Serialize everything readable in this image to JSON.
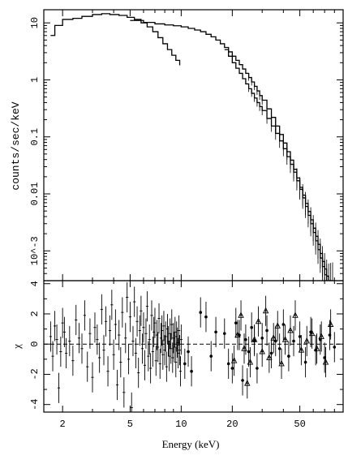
{
  "chart_data": [
    {
      "type": "line",
      "panel": "spectrum",
      "title": "",
      "xlabel": "Energy (keV)",
      "ylabel": "counts/sec/keV",
      "xscale": "log",
      "yscale": "log",
      "xlim": [
        1.55,
        90
      ],
      "ylim": [
        0.0003,
        17
      ],
      "y_tick_labels": [
        "10",
        "1",
        "0.1",
        "0.01",
        "10^-3"
      ],
      "y_tick_values": [
        10,
        1,
        0.1,
        0.01,
        0.001
      ],
      "series": [
        {
          "x": [
            1.7,
            1.8,
            2.0,
            2.3,
            2.6,
            3.0,
            3.4,
            3.8,
            4.3,
            4.8,
            5.3,
            5.8,
            6.3,
            6.8,
            7.3,
            7.8,
            8.3,
            8.8,
            9.3,
            9.8
          ],
          "y": [
            6,
            9,
            11.5,
            12,
            13,
            14,
            14.5,
            14,
            13.5,
            12.5,
            11.5,
            10,
            8.5,
            7,
            5.5,
            4.3,
            3.4,
            2.7,
            2.2,
            1.8
          ]
        },
        {
          "x": [
            5.0,
            6.0,
            7.0,
            8.0,
            9.0,
            10,
            11,
            12,
            13,
            14,
            15,
            16,
            17,
            18,
            19,
            20,
            21,
            22,
            23,
            24,
            25,
            26,
            27,
            28,
            29,
            30,
            32,
            34,
            36,
            38,
            40,
            42,
            44,
            46,
            48,
            50,
            52,
            54,
            56,
            58,
            60,
            62,
            64,
            66,
            68,
            70,
            72,
            74,
            76,
            78
          ],
          "y": [
            11,
            10.2,
            9.6,
            9.2,
            8.9,
            8.5,
            8.0,
            7.5,
            7.0,
            6.3,
            5.7,
            5.0,
            4.3,
            3.7,
            3.1,
            2.6,
            2.2,
            1.85,
            1.55,
            1.3,
            1.1,
            0.92,
            0.77,
            0.64,
            0.53,
            0.44,
            0.31,
            0.22,
            0.155,
            0.11,
            0.078,
            0.055,
            0.039,
            0.027,
            0.019,
            0.013,
            0.0095,
            0.0068,
            0.0049,
            0.0035,
            0.0025,
            0.0018,
            0.0013,
            0.0009,
            0.00065,
            0.00048,
            0.00036,
            0.0003,
            0.0003,
            0.0003
          ]
        },
        {
          "x": [
            18,
            19,
            20,
            21,
            22,
            23,
            24,
            25,
            26,
            27,
            28,
            29,
            30,
            32,
            34,
            36,
            38,
            40,
            42,
            44,
            46,
            48,
            50,
            52,
            54,
            56,
            58,
            60,
            62,
            64,
            66,
            68,
            70,
            72
          ],
          "y": [
            3.4,
            2.6,
            2.0,
            1.6,
            1.3,
            1.05,
            0.85,
            0.7,
            0.58,
            0.48,
            0.4,
            0.34,
            0.29,
            0.21,
            0.155,
            0.115,
            0.085,
            0.062,
            0.045,
            0.033,
            0.024,
            0.017,
            0.012,
            0.0085,
            0.006,
            0.0042,
            0.003,
            0.0021,
            0.0015,
            0.00105,
            0.00075,
            0.00053,
            0.00038,
            0.0003
          ]
        }
      ]
    },
    {
      "type": "scatter",
      "panel": "residuals",
      "title": "",
      "xlabel": "Energy (keV)",
      "ylabel": "χ",
      "xscale": "log",
      "xlim": [
        1.55,
        90
      ],
      "ylim": [
        -4.5,
        4.2
      ],
      "x_tick_labels": [
        "2",
        "5",
        "10",
        "20",
        "50"
      ],
      "x_tick_values": [
        2,
        5,
        10,
        20,
        50
      ],
      "y_tick_labels": [
        "4",
        "2",
        "0",
        "-2",
        "-4"
      ],
      "y_tick_values": [
        4,
        2,
        0,
        -2,
        -4
      ],
      "reference_line": 0,
      "series": [
        {
          "marker": "none",
          "x": [
            1.7,
            1.75,
            1.8,
            1.85,
            1.9,
            1.95,
            2.0,
            2.05,
            2.1,
            2.2,
            2.3,
            2.4,
            2.5,
            2.6,
            2.7,
            2.8,
            2.9,
            3.0,
            3.1,
            3.2,
            3.3,
            3.4,
            3.5,
            3.6,
            3.7,
            3.8,
            3.9,
            4.0,
            4.1,
            4.2,
            4.3,
            4.4,
            4.5,
            4.6,
            4.7,
            4.8,
            4.9,
            5.0,
            5.1,
            5.2,
            5.3,
            5.4,
            5.5,
            5.6,
            5.7,
            5.8,
            5.9,
            6.0,
            6.1,
            6.2,
            6.3,
            6.4,
            6.5,
            6.6,
            6.7,
            6.8,
            6.9,
            7.0,
            7.1,
            7.2,
            7.3,
            7.4,
            7.5,
            7.6,
            7.7,
            7.8,
            7.9,
            8.0,
            8.1,
            8.2,
            8.3,
            8.4,
            8.5,
            8.6,
            8.7,
            8.8,
            8.9,
            9.0,
            9.1,
            9.2,
            9.3,
            9.4,
            9.5,
            9.6,
            9.7,
            9.8,
            9.9,
            10.0
          ],
          "y": [
            0.5,
            -0.8,
            1.2,
            0.3,
            -2.9,
            -0.5,
            1.4,
            0.8,
            -0.6,
            0.2,
            -1.1,
            1.6,
            0.4,
            -0.3,
            1.9,
            -1.5,
            0.7,
            -2.2,
            1.1,
            0.3,
            -0.9,
            2.3,
            -0.4,
            1.5,
            -1.8,
            0.9,
            2.6,
            -0.7,
            1.3,
            -2.7,
            0.6,
            -1.2,
            2.1,
            -3.2,
            0.4,
            3.1,
            -1.0,
            1.8,
            -4.2,
            0.2,
            2.8,
            -0.6,
            1.5,
            -1.9,
            0.9,
            2.2,
            -0.3,
            1.1,
            -1.4,
            0.7,
            2.5,
            -0.8,
            0.3,
            -1.6,
            1.9,
            -0.5,
            0.8,
            1.4,
            -1.1,
            0.6,
            -0.2,
            1.7,
            -1.3,
            0.4,
            0.9,
            -0.7,
            1.2,
            -0.4,
            0.5,
            -1.5,
            1.0,
            0.2,
            -0.8,
            0.7,
            -0.3,
            1.3,
            -0.9,
            0.4,
            -0.2,
            0.8,
            -1.2,
            0.5,
            0.1,
            -0.6,
            0.9,
            -0.4,
            -1.8,
            0.3
          ],
          "yerr": 1
        },
        {
          "marker": "cross",
          "x": [
            10.5,
            11,
            11.5,
            13,
            14,
            15,
            16,
            18,
            19,
            20,
            21,
            22,
            23,
            24,
            25,
            26,
            27,
            28,
            30,
            32,
            34,
            36,
            38,
            40,
            43,
            46,
            50,
            54,
            58,
            62,
            66,
            70,
            75,
            80
          ],
          "y": [
            -1.3,
            -0.5,
            -1.8,
            2.1,
            1.8,
            -0.8,
            0.8,
            0.7,
            -1.3,
            -1.6,
            1.4,
            0.6,
            -2.4,
            0.3,
            -0.5,
            1.1,
            0.2,
            -1.6,
            0.4,
            0.9,
            -0.6,
            0.2,
            -0.3,
            1.3,
            -0.8,
            0.2,
            0.5,
            -1.2,
            0.8,
            -0.4,
            0.3,
            -0.9,
            0.6,
            -0.2
          ],
          "yerr": 1
        },
        {
          "marker": "triangle",
          "x": [
            20.5,
            21.5,
            22.5,
            23.5,
            24.5,
            25.5,
            27,
            28.5,
            30,
            31.5,
            33,
            35,
            37,
            39,
            41,
            44,
            47,
            51,
            55,
            59,
            63,
            67,
            71,
            76
          ],
          "y": [
            -1.1,
            0.6,
            1.9,
            -0.3,
            -2.6,
            -1.2,
            0.3,
            1.5,
            -0.5,
            2.2,
            -0.9,
            0.4,
            1.2,
            -1.3,
            0.3,
            0.9,
            1.9,
            -0.4,
            0.2,
            0.7,
            -0.3,
            0.5,
            -1.2,
            1.3
          ],
          "yerr": 1
        }
      ]
    }
  ]
}
